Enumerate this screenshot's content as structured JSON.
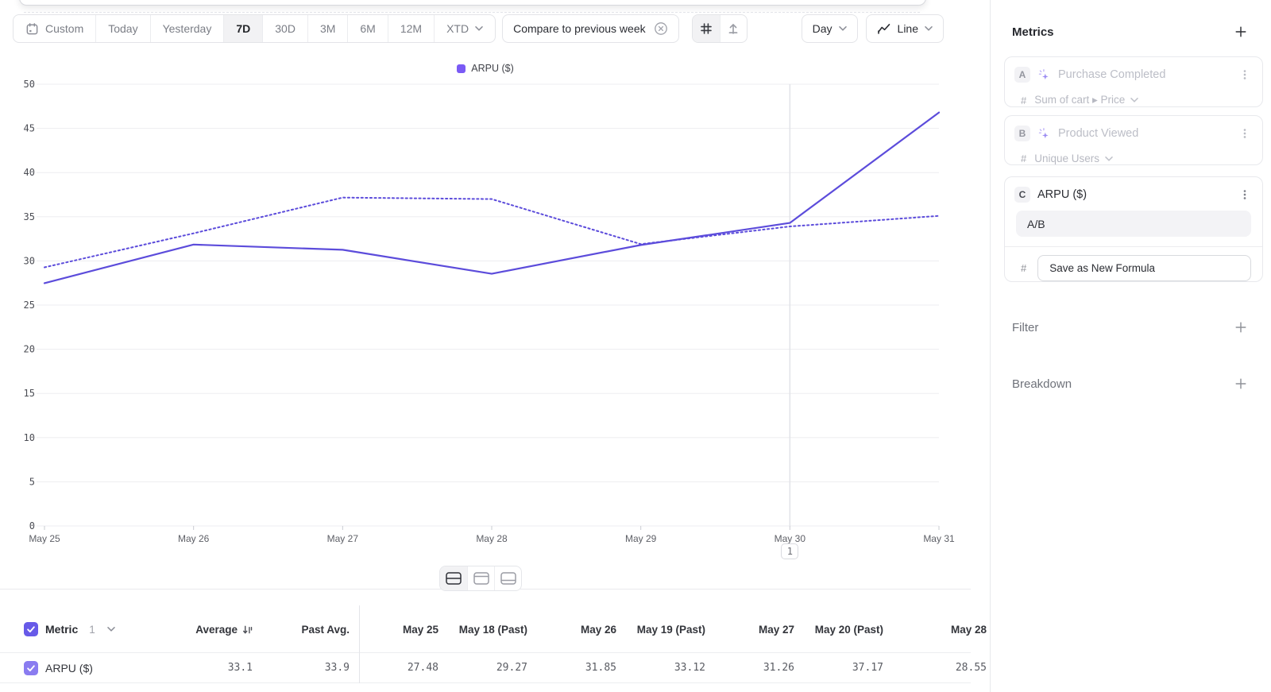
{
  "toolbar": {
    "date_ranges": [
      "Custom",
      "Today",
      "Yesterday",
      "7D",
      "30D",
      "3M",
      "6M",
      "12M",
      "XTD"
    ],
    "active_range": "7D",
    "compare_chip_label": "Compare to previous week",
    "interval_dropdown": "Day",
    "chart_type_dropdown": "Line"
  },
  "legend": {
    "label": "ARPU ($)"
  },
  "chart_data": {
    "type": "line",
    "x": [
      "May 25",
      "May 26",
      "May 27",
      "May 28",
      "May 29",
      "May 30",
      "May 31"
    ],
    "series": [
      {
        "name": "ARPU ($)",
        "line_style": "solid",
        "color": "#5c4cdb",
        "values": [
          27.48,
          31.85,
          31.26,
          28.55,
          31.8,
          34.3,
          46.8
        ]
      },
      {
        "name": "ARPU ($) previous week",
        "line_style": "dotted",
        "color": "#5c4cdb",
        "values": [
          29.27,
          33.12,
          37.17,
          37.0,
          31.9,
          33.9,
          35.1
        ]
      }
    ],
    "ylim": [
      0,
      50
    ],
    "ytick_step": 5,
    "grid": "horizontal",
    "legend_position": "top-center",
    "annotation": {
      "x": "May 30",
      "badge": "1"
    }
  },
  "sidebar": {
    "metrics_title": "Metrics",
    "cards": [
      {
        "letter": "A",
        "title": "Purchase Completed",
        "measure": "Sum of cart ▸ Price",
        "disabled": true,
        "sparkle": true
      },
      {
        "letter": "B",
        "title": "Product Viewed",
        "measure": "Unique Users",
        "disabled": true,
        "sparkle": true
      },
      {
        "letter": "C",
        "title": "ARPU ($)",
        "formula": "A/B",
        "button_label": "Save as New Formula",
        "disabled": false
      }
    ],
    "filter_title": "Filter",
    "breakdown_title": "Breakdown"
  },
  "table": {
    "metric_label": "Metric",
    "metric_count": "1",
    "columns": [
      "Average",
      "Past Avg.",
      "May 25",
      "May 18 (Past)",
      "May 26",
      "May 19 (Past)",
      "May 27",
      "May 20 (Past)",
      "May 28"
    ],
    "rows": [
      {
        "name": "ARPU ($)",
        "values": [
          "33.1",
          "33.9",
          "27.48",
          "29.27",
          "31.85",
          "33.12",
          "31.26",
          "37.17",
          "28.55"
        ]
      }
    ]
  },
  "colors": {
    "accent_purple": "#5c4cdb",
    "legend_swatch": "#7a5af5",
    "checkbox_header": "#675ae8",
    "checkbox_row": "#8a7cf0"
  }
}
